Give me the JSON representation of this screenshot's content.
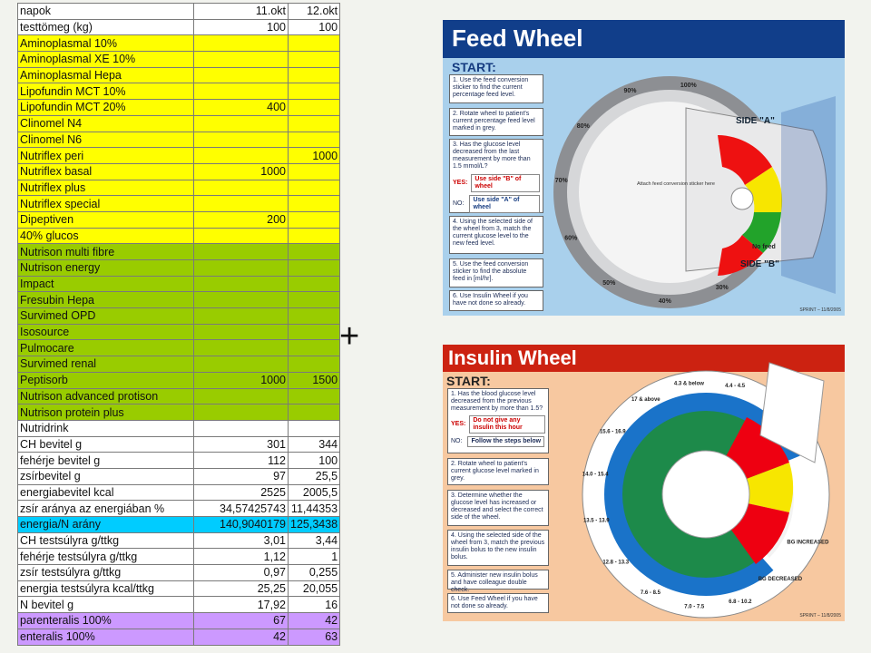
{
  "sheet": {
    "rows": [
      {
        "label": "napok",
        "a": "11.okt",
        "b": "12.okt",
        "color": "#ffffff"
      },
      {
        "label": "testtömeg (kg)",
        "a": "100",
        "b": "100",
        "color": "#ffffff"
      },
      {
        "label": "Aminoplasmal 10%",
        "a": "",
        "b": "",
        "color": "#ffff00"
      },
      {
        "label": "Aminoplasmal XE 10%",
        "a": "",
        "b": "",
        "color": "#ffff00"
      },
      {
        "label": "Aminoplasmal Hepa",
        "a": "",
        "b": "",
        "color": "#ffff00"
      },
      {
        "label": "Lipofundin MCT 10%",
        "a": "",
        "b": "",
        "color": "#ffff00"
      },
      {
        "label": "Lipofundin MCT 20%",
        "a": "400",
        "b": "",
        "color": "#ffff00"
      },
      {
        "label": "Clinomel N4",
        "a": "",
        "b": "",
        "color": "#ffff00"
      },
      {
        "label": "Clinomel N6",
        "a": "",
        "b": "",
        "color": "#ffff00"
      },
      {
        "label": "Nutriflex peri",
        "a": "",
        "b": "1000",
        "color": "#ffff00"
      },
      {
        "label": "Nutriflex basal",
        "a": "1000",
        "b": "",
        "color": "#ffff00"
      },
      {
        "label": "Nutriflex plus",
        "a": "",
        "b": "",
        "color": "#ffff00"
      },
      {
        "label": "Nutriflex special",
        "a": "",
        "b": "",
        "color": "#ffff00"
      },
      {
        "label": "Dipeptiven",
        "a": "200",
        "b": "",
        "color": "#ffff00"
      },
      {
        "label": "40% glucos",
        "a": "",
        "b": "",
        "color": "#ffff00"
      },
      {
        "label": "Nutrison multi fibre",
        "a": "",
        "b": "",
        "color": "#99cc00"
      },
      {
        "label": "Nutrison energy",
        "a": "",
        "b": "",
        "color": "#99cc00"
      },
      {
        "label": "Impact",
        "a": "",
        "b": "",
        "color": "#99cc00"
      },
      {
        "label": "Fresubin Hepa",
        "a": "",
        "b": "",
        "color": "#99cc00"
      },
      {
        "label": "Survimed OPD",
        "a": "",
        "b": "",
        "color": "#99cc00"
      },
      {
        "label": "Isosource",
        "a": "",
        "b": "",
        "color": "#99cc00"
      },
      {
        "label": "Pulmocare",
        "a": "",
        "b": "",
        "color": "#99cc00"
      },
      {
        "label": "Survimed renal",
        "a": "",
        "b": "",
        "color": "#99cc00"
      },
      {
        "label": "Peptisorb",
        "a": "1000",
        "b": "1500",
        "color": "#99cc00"
      },
      {
        "label": "Nutrison advanced protison",
        "a": "",
        "b": "",
        "color": "#99cc00"
      },
      {
        "label": "Nutrison protein plus",
        "a": "",
        "b": "",
        "color": "#99cc00"
      },
      {
        "label": "Nutridrink",
        "a": "",
        "b": "",
        "color": "#ffffff"
      },
      {
        "label": "CH bevitel g",
        "a": "301",
        "b": "344",
        "color": "#ffffff"
      },
      {
        "label": "fehérje bevitel g",
        "a": "112",
        "b": "100",
        "color": "#ffffff"
      },
      {
        "label": "zsírbevitel g",
        "a": "97",
        "b": "25,5",
        "color": "#ffffff"
      },
      {
        "label": "energiabevitel kcal",
        "a": "2525",
        "b": "2005,5",
        "color": "#ffffff"
      },
      {
        "label": "zsír aránya az energiában %",
        "a": "34,57425743",
        "b": "11,44353",
        "color": "#ffffff"
      },
      {
        "label": "energia/N arány",
        "a": "140,9040179",
        "b": "125,3438",
        "color": "#00ccff"
      },
      {
        "label": "CH testsúlyra g/ttkg",
        "a": "3,01",
        "b": "3,44",
        "color": "#ffffff"
      },
      {
        "label": "fehérje testsúlyra g/ttkg",
        "a": "1,12",
        "b": "1",
        "color": "#ffffff"
      },
      {
        "label": "zsír testsúlyra g/ttkg",
        "a": "0,97",
        "b": "0,255",
        "color": "#ffffff"
      },
      {
        "label": "energia testsúlyra kcal/ttkg",
        "a": "25,25",
        "b": "20,055",
        "color": "#ffffff"
      },
      {
        "label": "N bevitel g",
        "a": "17,92",
        "b": "16",
        "color": "#ffffff"
      },
      {
        "label": "parenteralis 100%",
        "a": "67",
        "b": "42",
        "color": "#cc99ff"
      },
      {
        "label": "enteralis 100%",
        "a": "42",
        "b": "63",
        "color": "#cc99ff"
      }
    ]
  },
  "plus": "+",
  "feed_wheel": {
    "title": "Feed Wheel",
    "start": "START:",
    "step1": "1. Use the feed conversion sticker to find the current percentage feed level.",
    "step2": "2. Rotate wheel to patient's current percentage feed level marked in grey.",
    "step3": "3. Has the glucose level decreased from the last measurement by more than 1.5 mmol/L?",
    "yes_label": "YES:",
    "yes_text": "Use side \"B\" of wheel",
    "no_label": "NO:",
    "no_text": "Use side \"A\" of wheel",
    "step4": "4. Using the selected side of the wheel from 3, match the current glucose level to the new feed level.",
    "step5": "5. Use the feed conversion sticker to find the absolute feed in [ml/hr].",
    "step6": "6. Use Insulin Wheel if you have not done so already.",
    "sticker_note": "Attach feed conversion sticker here",
    "side_a": "SIDE \"A\"",
    "side_b": "SIDE \"B\"",
    "ring_labels": [
      "100%",
      "90%",
      "80%",
      "70%",
      "60%",
      "50%",
      "40%",
      "30%",
      "No feed"
    ],
    "stamp": "SPRINT – 11/8/2005"
  },
  "insulin_wheel": {
    "title": "Insulin Wheel",
    "start": "START:",
    "step1": "1. Has the blood glucose level decreased from the previous measurement by more than 1.5?",
    "yes_label": "YES:",
    "yes_text": "Do not give any insulin this hour",
    "no_label": "NO:",
    "no_text": "Follow the steps below",
    "step2": "2. Rotate wheel to patient's current glucose level marked in grey.",
    "step3": "3. Determine whether the glucose level has increased or decreased and select the correct side of the wheel.",
    "step4": "4. Using the selected side of the wheel from 3, match the previous insulin bolus to the new insulin bolus.",
    "step5": "5. Administer new insulin bolus and have colleague double check.",
    "step6": "6. Use Feed Wheel if you have not done so already.",
    "ring_labels": [
      "4.4 - 4.5",
      "4.3 & below",
      "17 & above",
      "15.6 - 16.9",
      "14.0 - 15.4",
      "13.5 - 13.9",
      "12.8 - 13.3",
      "7.6 - 8.5",
      "7.0 - 7.5",
      "6.8 - 10.2",
      "BG DECREASED",
      "BG INCREASED"
    ],
    "stamp": "SPRINT – 11/8/2005"
  },
  "colors": {
    "feed_title_bg": "#113e8a",
    "insulin_title_bg": "#cc2211",
    "feed_panel_bg": "#a9d0ec",
    "insulin_panel_bg": "#f7c8a0"
  }
}
